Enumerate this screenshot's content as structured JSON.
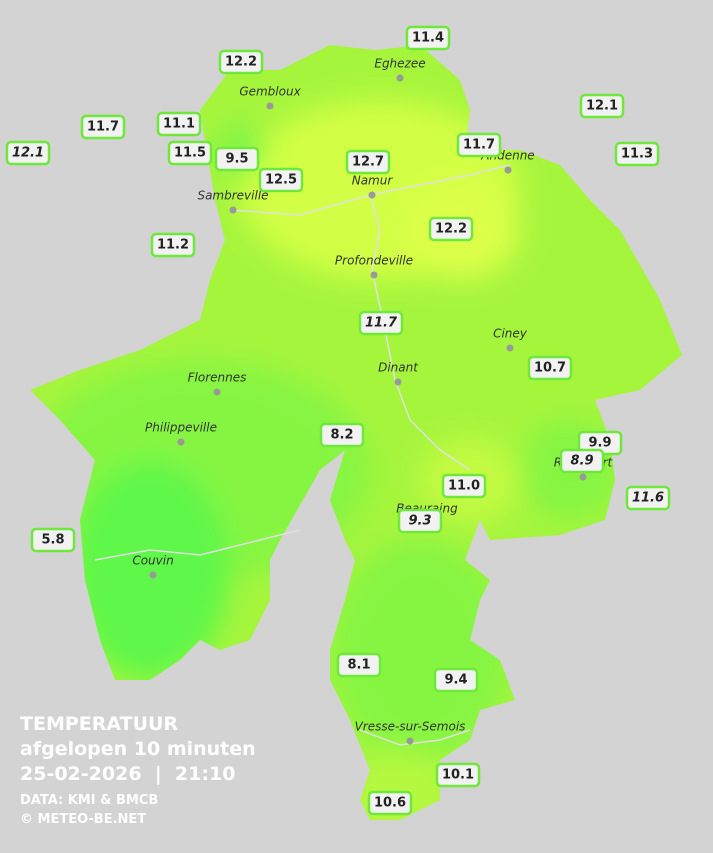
{
  "legend": {
    "title": "TEMPERATUUR",
    "subtitle": "afgelopen 10 minuten",
    "datetime": "25-02-2026  |  21:10",
    "source": "DATA: KMI & BMCB",
    "copyright": "© METEO-BE.NET"
  },
  "towns": [
    "Eghezee",
    "Gembloux",
    "Andenne",
    "Namur",
    "Sambreville",
    "Profondeville",
    "Ciney",
    "Dinant",
    "Florennes",
    "Philippeville",
    "Rochefort",
    "Beauraing",
    "Couvin",
    "Vresse-sur-Semois"
  ],
  "stations": [
    "11.4",
    "12.2",
    "11.7",
    "11.1",
    "12.1",
    "12.1",
    "11.5",
    "9.5",
    "12.7",
    "11.7",
    "11.3",
    "12.5",
    "12.2",
    "11.2",
    "11.7",
    "10.7",
    "8.2",
    "9.9",
    "8.9",
    "11.0",
    "11.6",
    "9.3",
    "5.8",
    "8.1",
    "9.4",
    "10.1",
    "10.6"
  ]
}
